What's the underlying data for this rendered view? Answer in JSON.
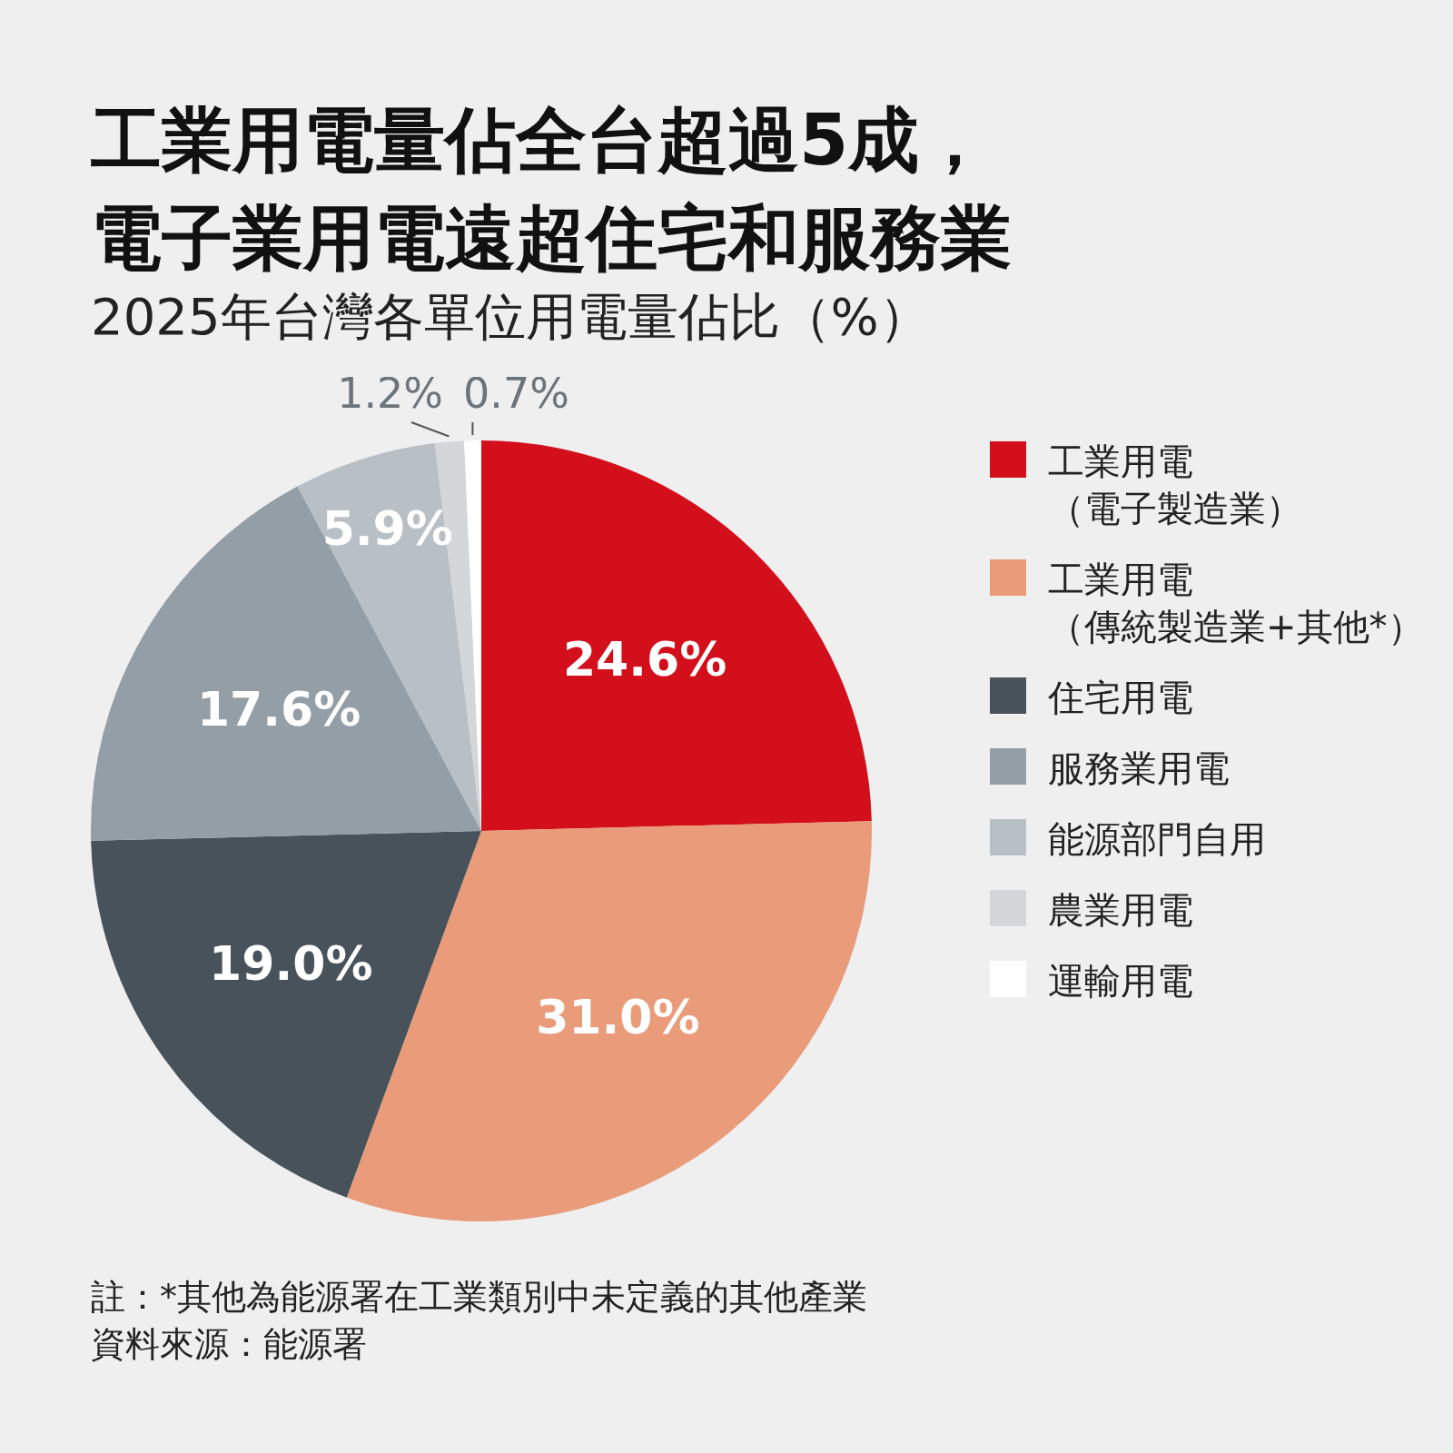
{
  "chart_data": {
    "type": "pie",
    "title": "工業用電量佔全台超過5成，電子業用電遠超住宅和服務業",
    "subtitle": "2025年台灣各單位用電量佔比（%）",
    "categories": [
      "工業用電（電子製造業）",
      "工業用電（傳統製造業+其他*）",
      "住宅用電",
      "服務業用電",
      "能源部門自用",
      "農業用電",
      "運輸用電"
    ],
    "values": [
      24.6,
      31.0,
      19.0,
      17.6,
      5.9,
      1.2,
      0.7
    ],
    "value_labels": [
      "24.6%",
      "31.0%",
      "19.0%",
      "17.6%",
      "5.9%",
      "1.2%",
      "0.7%"
    ],
    "colors": [
      "#d40f1c",
      "#e99b7a",
      "#48525b",
      "#939ea6",
      "#b9c0c5",
      "#d3d7da",
      "#ffffff"
    ],
    "legend": "right",
    "annotations": [
      "註：*其他為能源署在工業類別中未定義的其他產業",
      "資料來源：能源署"
    ]
  }
}
